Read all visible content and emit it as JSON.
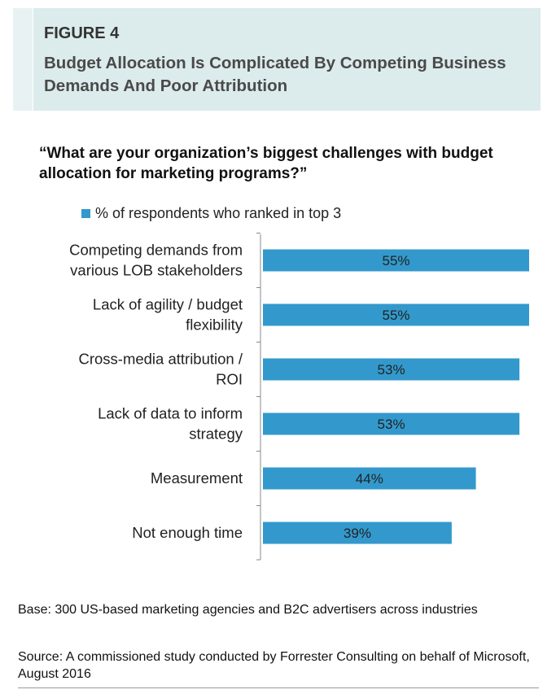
{
  "figure": {
    "label": "FIGURE 4",
    "title": "Budget Allocation Is Complicated By Competing Business Demands And Poor Attribution"
  },
  "question": "“What are your organization’s biggest challenges with budget allocation for marketing programs?”",
  "legend": {
    "label": "% of respondents who ranked in top 3",
    "color": "#3399cc"
  },
  "chart_data": {
    "type": "bar",
    "orientation": "horizontal",
    "categories": [
      [
        "Competing demands from",
        "various LOB stakeholders"
      ],
      [
        "Lack of agility / budget",
        "flexibility"
      ],
      [
        "Cross-media attribution /",
        "ROI"
      ],
      [
        "Lack of data to inform",
        "strategy"
      ],
      [
        "Measurement"
      ],
      [
        "Not enough time"
      ]
    ],
    "series": [
      {
        "name": "% of respondents who ranked in top 3",
        "values": [
          55,
          55,
          53,
          53,
          44,
          39
        ],
        "labels": [
          "55%",
          "55%",
          "53%",
          "53%",
          "44%",
          "39%"
        ],
        "color": "#3399cc"
      }
    ],
    "xlim": [
      0,
      55
    ],
    "grid": false,
    "legend_position": "top"
  },
  "footer": {
    "base": "Base: 300 US-based marketing agencies and B2C advertisers across industries",
    "source": "Source: A commissioned study conducted by Forrester Consulting on behalf of Microsoft, August 2016"
  }
}
